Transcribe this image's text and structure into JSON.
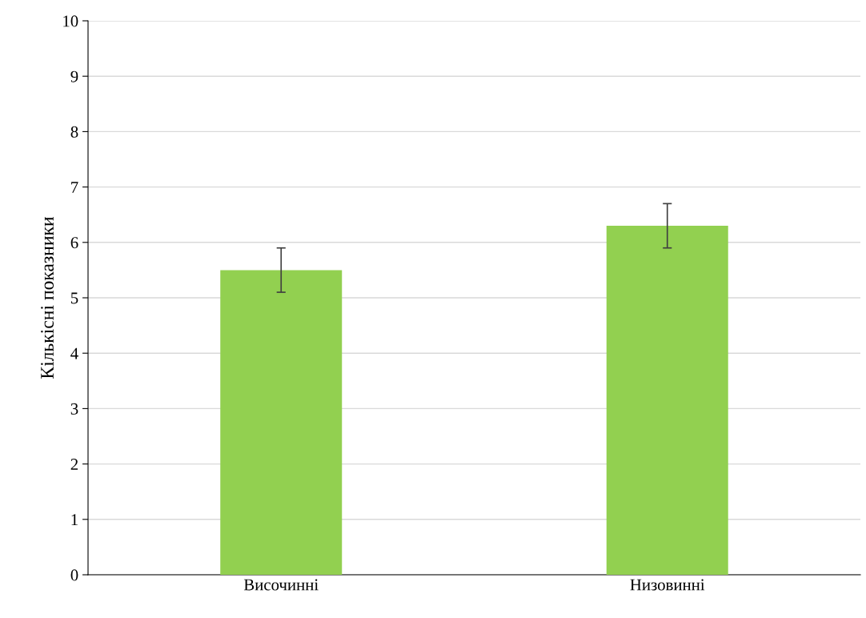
{
  "chart_data": {
    "type": "bar",
    "ylabel": "Кількісні показники",
    "categories": [
      "Височинні",
      "Низовинні"
    ],
    "values": [
      5.5,
      6.3
    ],
    "errors": [
      0.4,
      0.4
    ],
    "color": "#92d050",
    "ylim": [
      0,
      10
    ],
    "yticks": [
      0,
      1,
      2,
      3,
      4,
      5,
      6,
      7,
      8,
      9,
      10
    ],
    "grid": "y",
    "legend": false
  }
}
